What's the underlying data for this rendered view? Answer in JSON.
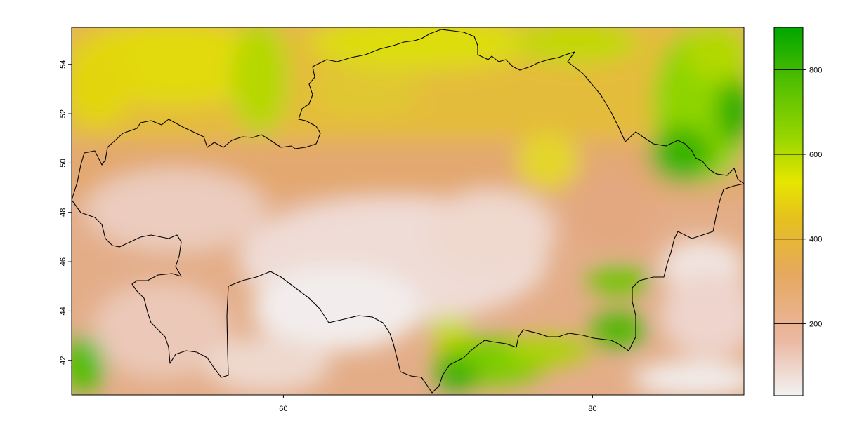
{
  "chart_data": {
    "type": "heatmap",
    "title": "",
    "xlabel": "",
    "ylabel": "",
    "xlim": [
      46.3,
      89.8
    ],
    "ylim": [
      40.6,
      55.5
    ],
    "x_ticks": [
      {
        "value": 60,
        "label": "60"
      },
      {
        "value": 80,
        "label": "80"
      }
    ],
    "y_ticks": [
      {
        "value": 42,
        "label": "42"
      },
      {
        "value": 44,
        "label": "44"
      },
      {
        "value": 46,
        "label": "46"
      },
      {
        "value": 48,
        "label": "48"
      },
      {
        "value": 50,
        "label": "50"
      },
      {
        "value": 52,
        "label": "52"
      },
      {
        "value": 54,
        "label": "54"
      }
    ],
    "legend": {
      "placement": "right",
      "range": [
        30,
        900
      ],
      "ticks": [
        {
          "value": 200,
          "label": "200"
        },
        {
          "value": 400,
          "label": "400"
        },
        {
          "value": 600,
          "label": "600"
        },
        {
          "value": 800,
          "label": "800"
        }
      ],
      "colors": [
        "#F2F2F2",
        "#EBB8A3",
        "#E6A85F",
        "#E6C01E",
        "#E6E600",
        "#98D600",
        "#52BF00",
        "#00A600"
      ]
    },
    "border": "country outline (black line)",
    "grid": false
  }
}
